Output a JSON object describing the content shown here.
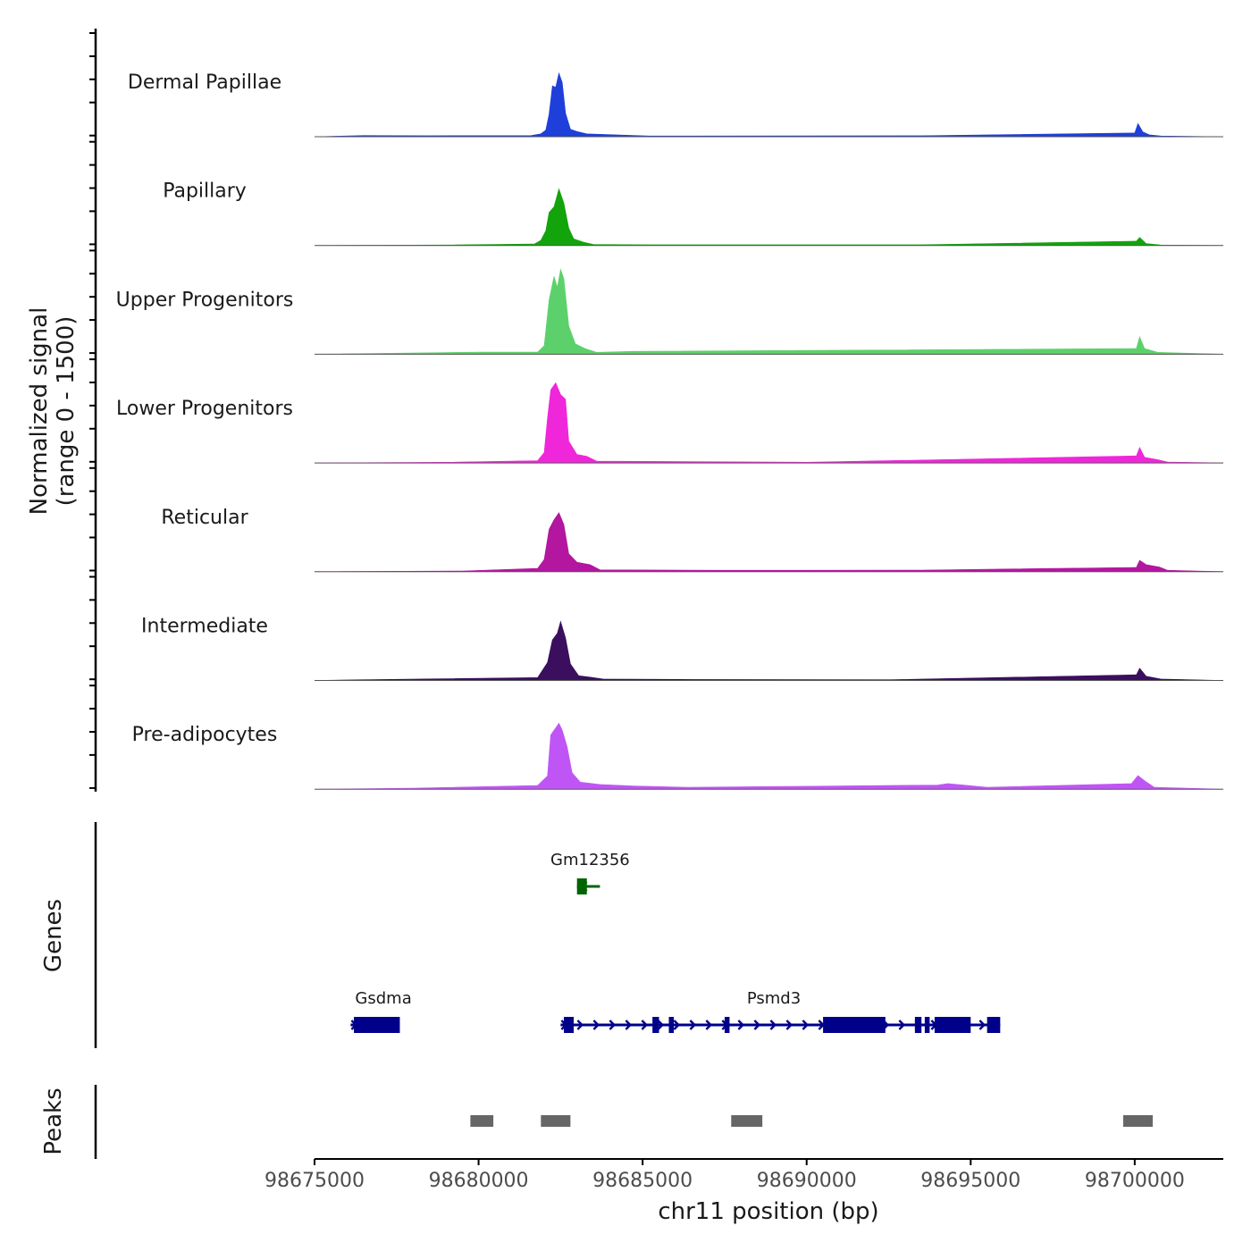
{
  "chart_data": {
    "type": "area",
    "chromosome": "chr11",
    "xlabel": "chr11 position (bp)",
    "xlim": [
      98675000,
      98702700
    ],
    "xticks": [
      98675000,
      98680000,
      98685000,
      98690000,
      98695000,
      98700000
    ],
    "xtick_labels": [
      "98675000",
      "98680000",
      "98685000",
      "98690000",
      "98695000",
      "98700000"
    ],
    "coverage": {
      "ylabel_line1": "Normalized signal",
      "ylabel_line2": "(range 0 - 1500)",
      "ylim": [
        0,
        1500
      ],
      "series": [
        {
          "name": "Dermal Papillae",
          "color": "#1e3fd9",
          "values": [
            [
              98676500,
              25
            ],
            [
              98678500,
              20
            ],
            [
              98681600,
              25
            ],
            [
              98681900,
              60
            ],
            [
              98682050,
              140
            ],
            [
              98682150,
              480
            ],
            [
              98682250,
              1080
            ],
            [
              98682350,
              1050
            ],
            [
              98682450,
              1350
            ],
            [
              98682550,
              1150
            ],
            [
              98682650,
              500
            ],
            [
              98682800,
              160
            ],
            [
              98683000,
              110
            ],
            [
              98683300,
              60
            ],
            [
              98685200,
              15
            ],
            [
              98693500,
              20
            ],
            [
              98700000,
              80
            ],
            [
              98700100,
              280
            ],
            [
              98700250,
              100
            ],
            [
              98700450,
              40
            ],
            [
              98700800,
              15
            ]
          ]
        },
        {
          "name": "Papillary",
          "color": "#13a30a",
          "values": [
            [
              98679000,
              10
            ],
            [
              98681700,
              30
            ],
            [
              98681900,
              110
            ],
            [
              98682050,
              310
            ],
            [
              98682150,
              700
            ],
            [
              98682300,
              820
            ],
            [
              98682450,
              1200
            ],
            [
              98682600,
              900
            ],
            [
              98682750,
              370
            ],
            [
              98682900,
              140
            ],
            [
              98683200,
              70
            ],
            [
              98683500,
              20
            ],
            [
              98685000,
              15
            ],
            [
              98693500,
              15
            ],
            [
              98700050,
              90
            ],
            [
              98700150,
              170
            ],
            [
              98700350,
              40
            ],
            [
              98700800,
              10
            ]
          ]
        },
        {
          "name": "Upper Progenitors",
          "color": "#5cd16b",
          "values": [
            [
              98680100,
              45
            ],
            [
              98681800,
              45
            ],
            [
              98682000,
              180
            ],
            [
              98682150,
              1150
            ],
            [
              98682300,
              1650
            ],
            [
              98682400,
              1420
            ],
            [
              98682500,
              1800
            ],
            [
              98682600,
              1600
            ],
            [
              98682750,
              600
            ],
            [
              98682950,
              220
            ],
            [
              98683250,
              120
            ],
            [
              98683600,
              40
            ],
            [
              98684700,
              60
            ],
            [
              98700050,
              120
            ],
            [
              98700150,
              370
            ],
            [
              98700300,
              120
            ],
            [
              98700700,
              40
            ]
          ]
        },
        {
          "name": "Lower Progenitors",
          "color": "#f026db",
          "values": [
            [
              98679000,
              15
            ],
            [
              98681800,
              50
            ],
            [
              98682000,
              220
            ],
            [
              98682100,
              950
            ],
            [
              98682200,
              1550
            ],
            [
              98682350,
              1700
            ],
            [
              98682500,
              1450
            ],
            [
              98682650,
              1350
            ],
            [
              98682750,
              460
            ],
            [
              98683000,
              180
            ],
            [
              98683300,
              140
            ],
            [
              98683600,
              40
            ],
            [
              98690000,
              15
            ],
            [
              98700050,
              150
            ],
            [
              98700150,
              330
            ],
            [
              98700300,
              120
            ],
            [
              98700700,
              70
            ],
            [
              98701000,
              20
            ]
          ]
        },
        {
          "name": "Reticular",
          "color": "#b3169f",
          "values": [
            [
              98679500,
              15
            ],
            [
              98681800,
              70
            ],
            [
              98682000,
              260
            ],
            [
              98682150,
              900
            ],
            [
              98682300,
              1100
            ],
            [
              98682450,
              1250
            ],
            [
              98682600,
              1000
            ],
            [
              98682750,
              380
            ],
            [
              98683000,
              200
            ],
            [
              98683400,
              150
            ],
            [
              98683700,
              40
            ],
            [
              98687300,
              30
            ],
            [
              98689500,
              30
            ],
            [
              98693500,
              35
            ],
            [
              98700050,
              90
            ],
            [
              98700150,
              240
            ],
            [
              98700350,
              150
            ],
            [
              98700750,
              100
            ],
            [
              98701000,
              30
            ]
          ]
        },
        {
          "name": "Intermediate",
          "color": "#3b0e5e",
          "values": [
            [
              98676500,
              15
            ],
            [
              98681800,
              60
            ],
            [
              98682100,
              380
            ],
            [
              98682250,
              860
            ],
            [
              98682400,
              1000
            ],
            [
              98682500,
              1250
            ],
            [
              98682650,
              900
            ],
            [
              98682800,
              350
            ],
            [
              98683050,
              100
            ],
            [
              98683400,
              70
            ],
            [
              98683800,
              30
            ],
            [
              98686500,
              20
            ],
            [
              98692500,
              15
            ],
            [
              98700050,
              120
            ],
            [
              98700150,
              260
            ],
            [
              98700350,
              90
            ],
            [
              98700800,
              30
            ]
          ]
        },
        {
          "name": "Pre-adipocytes",
          "color": "#c055f5",
          "values": [
            [
              98678000,
              20
            ],
            [
              98681800,
              80
            ],
            [
              98682100,
              280
            ],
            [
              98682200,
              1150
            ],
            [
              98682350,
              1300
            ],
            [
              98682450,
              1400
            ],
            [
              98682550,
              1250
            ],
            [
              98682700,
              900
            ],
            [
              98682850,
              350
            ],
            [
              98683100,
              150
            ],
            [
              98683700,
              100
            ],
            [
              98684700,
              70
            ],
            [
              98686400,
              40
            ],
            [
              98694000,
              90
            ],
            [
              98694300,
              120
            ],
            [
              98694600,
              100
            ],
            [
              98695500,
              40
            ],
            [
              98699900,
              120
            ],
            [
              98700100,
              290
            ],
            [
              98700300,
              180
            ],
            [
              98700600,
              40
            ]
          ]
        }
      ]
    },
    "genes": {
      "ylabel": "Genes",
      "items": [
        {
          "name": "Gm12356",
          "strand": "-",
          "color": "#006400",
          "row": 1,
          "start": 98683000,
          "end": 98683700,
          "exons": [
            [
              98683000,
              98683300
            ]
          ],
          "label_pos": 98683400
        },
        {
          "name": "Gsdma",
          "strand": "+",
          "color": "#00008b",
          "row": 2,
          "start": 98676100,
          "end": 98677600,
          "exons": [
            [
              98676200,
              98677600
            ]
          ],
          "label_pos": 98677100
        },
        {
          "name": "Psmd3",
          "strand": "+",
          "color": "#00008b",
          "row": 2,
          "start": 98682500,
          "end": 98695900,
          "exons": [
            [
              98682600,
              98682900
            ],
            [
              98685300,
              98685500
            ],
            [
              98685800,
              98685950
            ],
            [
              98687500,
              98687650
            ],
            [
              98690500,
              98692400
            ],
            [
              98693300,
              98693500
            ],
            [
              98693600,
              98693750
            ],
            [
              98693900,
              98695000
            ],
            [
              98695500,
              98695900
            ]
          ],
          "label_pos": 98689000
        }
      ]
    },
    "peaks": {
      "ylabel": "Peaks",
      "color": "#666666",
      "regions": [
        [
          98679750,
          98680450
        ],
        [
          98681900,
          98682800
        ],
        [
          98687700,
          98688650
        ],
        [
          98699650,
          98700550
        ]
      ]
    }
  }
}
